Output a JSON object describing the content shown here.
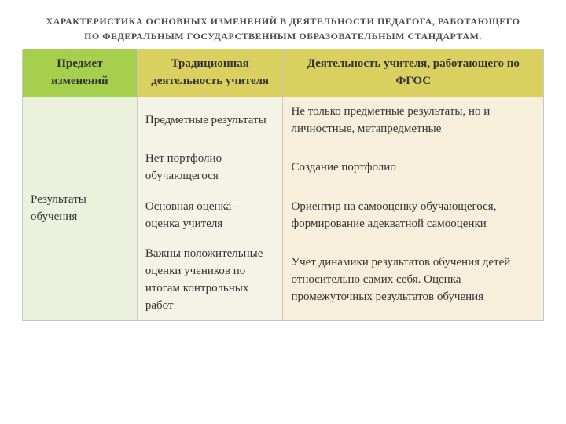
{
  "title_line1": "ХАРАКТЕРИСТИКА ОСНОВНЫХ  ИЗМЕНЕНИЙ В ДЕЯТЕЛЬНОСТИ ПЕДАГОГА, РАБОТАЮЩЕГО",
  "title_line2": "ПО ФЕДЕРАЛЬНЫМ ГОСУДАРСТВЕННЫМ ОБРАЗОВАТЕЛЬНЫМ СТАНДАРТАМ.",
  "table": {
    "columns": {
      "subject": "Предмет изменений",
      "traditional": "Традиционная деятельность учителя",
      "fgos": "Деятельность учителя, работающего по ФГОС"
    },
    "col_widths": {
      "subject": "22%",
      "traditional": "28%",
      "fgos": "50%"
    },
    "colors": {
      "hdr_subject_bg": "#a6cf4d",
      "hdr_other_bg": "#d9d060",
      "cell_subject_bg": "#ebf1dd",
      "cell_trad_bg": "#f3f3e7",
      "cell_fgos_bg": "#f7efdc",
      "border": "#c8c8c8",
      "text": "#333333"
    },
    "subject_cell": "Результаты обучения",
    "rows": [
      {
        "traditional": "Предметные результаты",
        "fgos": "Не только предметные результаты, но и личностные, метапредметные"
      },
      {
        "traditional": "Нет портфолио обучающегося",
        "fgos": "Создание портфолио"
      },
      {
        "traditional": "Основная оценка – оценка учителя",
        "fgos": "Ориентир на самооценку обучающегося, формирование адекватной самооценки"
      },
      {
        "traditional": "Важны положительные оценки учеников по итогам контрольных работ",
        "fgos": "Учет динамики результатов обучения детей относительно самих себя. Оценка промежуточных результатов обучения"
      }
    ]
  }
}
